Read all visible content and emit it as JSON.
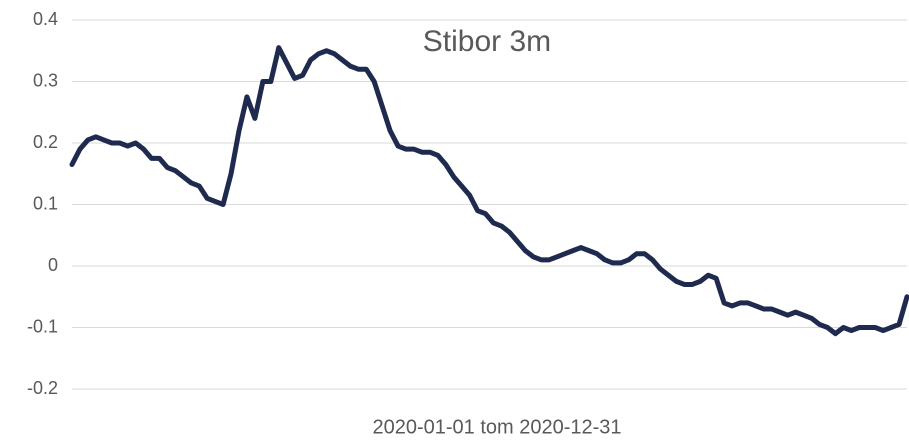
{
  "chart_data": {
    "type": "line",
    "title": "Stibor 3m",
    "x_label": "2020-01-01 tom  2020-12-31",
    "series": [
      {
        "name": "Stibor 3m",
        "color": "#1f2a4f",
        "values": [
          0.165,
          0.19,
          0.205,
          0.21,
          0.205,
          0.2,
          0.2,
          0.195,
          0.2,
          0.19,
          0.175,
          0.175,
          0.16,
          0.155,
          0.145,
          0.135,
          0.13,
          0.11,
          0.105,
          0.1,
          0.15,
          0.22,
          0.275,
          0.24,
          0.3,
          0.3,
          0.355,
          0.33,
          0.305,
          0.31,
          0.335,
          0.345,
          0.35,
          0.345,
          0.335,
          0.325,
          0.32,
          0.32,
          0.3,
          0.26,
          0.22,
          0.195,
          0.19,
          0.19,
          0.185,
          0.185,
          0.18,
          0.165,
          0.145,
          0.13,
          0.115,
          0.09,
          0.085,
          0.07,
          0.065,
          0.055,
          0.04,
          0.025,
          0.015,
          0.01,
          0.01,
          0.015,
          0.02,
          0.025,
          0.03,
          0.025,
          0.02,
          0.01,
          0.005,
          0.005,
          0.01,
          0.02,
          0.02,
          0.01,
          -0.005,
          -0.015,
          -0.025,
          -0.03,
          -0.03,
          -0.025,
          -0.015,
          -0.02,
          -0.06,
          -0.065,
          -0.06,
          -0.06,
          -0.065,
          -0.07,
          -0.07,
          -0.075,
          -0.08,
          -0.075,
          -0.08,
          -0.085,
          -0.095,
          -0.1,
          -0.11,
          -0.1,
          -0.105,
          -0.1,
          -0.1,
          -0.1,
          -0.105,
          -0.1,
          -0.095,
          -0.05
        ]
      }
    ],
    "ylim": [
      -0.2,
      0.4
    ],
    "yticks": [
      -0.2,
      -0.1,
      0,
      0.1,
      0.2,
      0.3,
      0.4
    ],
    "grid": true
  }
}
